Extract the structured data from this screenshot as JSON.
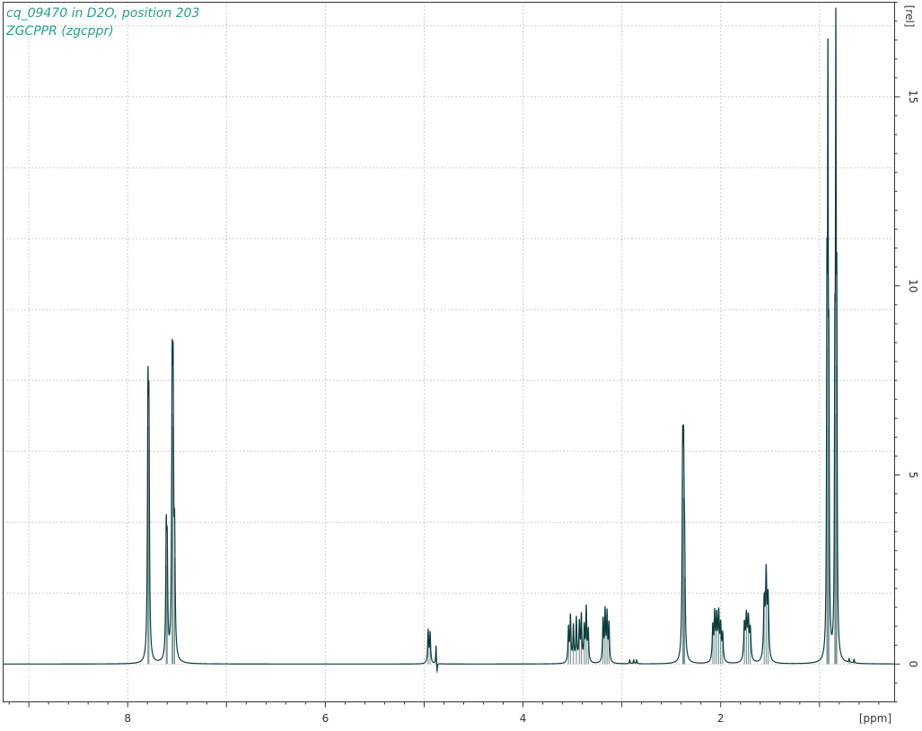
{
  "chart_data": {
    "type": "line",
    "title_lines": [
      "cq_09470 in D2O, position 203",
      "ZGCPPR (zgcppr)"
    ],
    "xlabel": "[ppm]",
    "ylabel": "[rel]",
    "x_reversed": true,
    "xlim": [
      9.26,
      0.24
    ],
    "ylim": [
      -1.0,
      17.5
    ],
    "x_ticks": [
      8,
      6,
      4,
      2
    ],
    "y_ticks": [
      0,
      5,
      10,
      15
    ],
    "grid": true,
    "series": [
      {
        "line_color": "#0b3b3b",
        "peaks": [
          {
            "ppm": 7.795,
            "height": 6.3,
            "width": 0.006
          },
          {
            "ppm": 7.785,
            "height": 5.7,
            "width": 0.006
          },
          {
            "ppm": 7.61,
            "height": 3.1,
            "width": 0.006
          },
          {
            "ppm": 7.6,
            "height": 2.6,
            "width": 0.006
          },
          {
            "ppm": 7.55,
            "height": 6.6,
            "width": 0.006
          },
          {
            "ppm": 7.54,
            "height": 6.3,
            "width": 0.006
          },
          {
            "ppm": 7.525,
            "height": 2.8,
            "width": 0.006
          },
          {
            "ppm": 4.96,
            "height": 0.85,
            "width": 0.006
          },
          {
            "ppm": 4.94,
            "height": 0.8,
            "width": 0.006
          },
          {
            "ppm": 4.88,
            "height": 0.5,
            "width": 0.004
          },
          {
            "ppm": 4.87,
            "height": -0.25,
            "width": 0.004
          },
          {
            "ppm": 3.54,
            "height": 0.9,
            "width": 0.006
          },
          {
            "ppm": 3.52,
            "height": 1.2,
            "width": 0.006
          },
          {
            "ppm": 3.49,
            "height": 0.95,
            "width": 0.006
          },
          {
            "ppm": 3.46,
            "height": 1.15,
            "width": 0.006
          },
          {
            "ppm": 3.43,
            "height": 1.0,
            "width": 0.006
          },
          {
            "ppm": 3.41,
            "height": 1.2,
            "width": 0.006
          },
          {
            "ppm": 3.38,
            "height": 0.9,
            "width": 0.006
          },
          {
            "ppm": 3.36,
            "height": 1.4,
            "width": 0.006
          },
          {
            "ppm": 3.34,
            "height": 0.8,
            "width": 0.006
          },
          {
            "ppm": 3.19,
            "height": 1.1,
            "width": 0.006
          },
          {
            "ppm": 3.17,
            "height": 1.3,
            "width": 0.006
          },
          {
            "ppm": 3.15,
            "height": 1.25,
            "width": 0.006
          },
          {
            "ppm": 3.13,
            "height": 1.0,
            "width": 0.006
          },
          {
            "ppm": 2.92,
            "height": 0.1,
            "width": 0.005
          },
          {
            "ppm": 2.88,
            "height": 0.1,
            "width": 0.005
          },
          {
            "ppm": 2.85,
            "height": 0.1,
            "width": 0.005
          },
          {
            "ppm": 2.385,
            "height": 4.9,
            "width": 0.006
          },
          {
            "ppm": 2.375,
            "height": 4.4,
            "width": 0.006
          },
          {
            "ppm": 2.365,
            "height": 2.3,
            "width": 0.006
          },
          {
            "ppm": 2.08,
            "height": 0.9,
            "width": 0.007
          },
          {
            "ppm": 2.06,
            "height": 1.2,
            "width": 0.007
          },
          {
            "ppm": 2.04,
            "height": 1.1,
            "width": 0.007
          },
          {
            "ppm": 2.02,
            "height": 1.2,
            "width": 0.007
          },
          {
            "ppm": 2.0,
            "height": 0.9,
            "width": 0.007
          },
          {
            "ppm": 1.98,
            "height": 0.7,
            "width": 0.007
          },
          {
            "ppm": 1.76,
            "height": 0.95,
            "width": 0.008
          },
          {
            "ppm": 1.74,
            "height": 1.1,
            "width": 0.008
          },
          {
            "ppm": 1.72,
            "height": 1.05,
            "width": 0.008
          },
          {
            "ppm": 1.7,
            "height": 0.8,
            "width": 0.008
          },
          {
            "ppm": 1.56,
            "height": 1.5,
            "width": 0.008
          },
          {
            "ppm": 1.54,
            "height": 2.2,
            "width": 0.008
          },
          {
            "ppm": 1.52,
            "height": 1.6,
            "width": 0.008
          },
          {
            "ppm": 0.925,
            "height": 8.4,
            "width": 0.0045
          },
          {
            "ppm": 0.915,
            "height": 14.1,
            "width": 0.0045
          },
          {
            "ppm": 0.905,
            "height": 6.3,
            "width": 0.0045
          },
          {
            "ppm": 0.845,
            "height": 6.6,
            "width": 0.0045
          },
          {
            "ppm": 0.835,
            "height": 14.9,
            "width": 0.0045
          },
          {
            "ppm": 0.825,
            "height": 7.9,
            "width": 0.0045
          },
          {
            "ppm": 0.7,
            "height": 0.1,
            "width": 0.005
          },
          {
            "ppm": 0.65,
            "height": 0.1,
            "width": 0.005
          }
        ]
      }
    ]
  }
}
